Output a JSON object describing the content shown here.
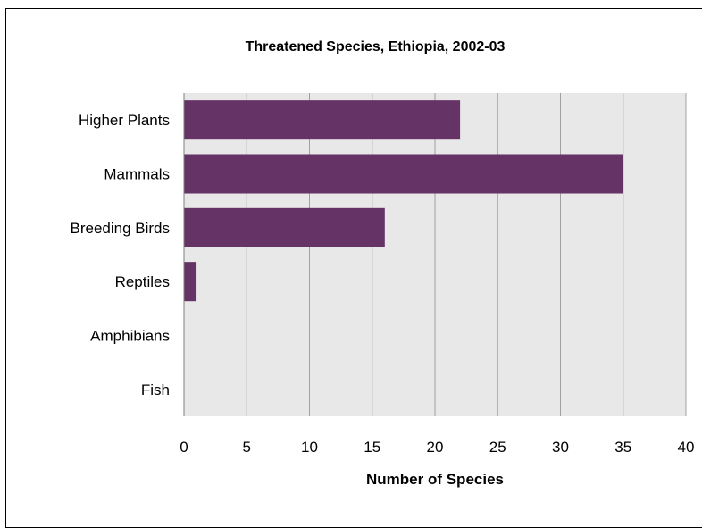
{
  "chart_data": {
    "type": "bar",
    "orientation": "horizontal",
    "title": "Threatened Species, Ethiopia, 2002-03",
    "xlabel": "Number of Species",
    "ylabel": "",
    "categories": [
      "Higher Plants",
      "Mammals",
      "Breeding Birds",
      "Reptiles",
      "Amphibians",
      "Fish"
    ],
    "values": [
      22,
      35,
      16,
      1,
      0,
      0
    ],
    "xlim": [
      0,
      40
    ],
    "xticks": [
      0,
      5,
      10,
      15,
      20,
      25,
      30,
      35,
      40
    ],
    "grid": true,
    "legend": "none",
    "colors": {
      "bar": "#663366",
      "plot_background": "#e8e8e8",
      "gridline": "#a0a0a0"
    }
  }
}
